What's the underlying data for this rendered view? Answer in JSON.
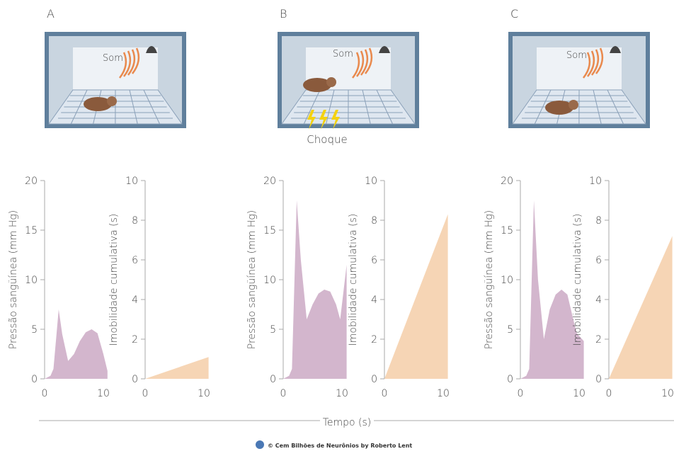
{
  "panels": [
    {
      "letter": "A",
      "sound_label": "Som"
    },
    {
      "letter": "B",
      "sound_label": "Som"
    },
    {
      "letter": "C",
      "sound_label": "Som"
    }
  ],
  "shock_label": "Choque",
  "shared_x_label": "Tempo (s)",
  "credit": "© Cem Bilhões de Neurônios by Roberto Lent",
  "chart_data": [
    {
      "type": "area",
      "y_label": "Pressão sangüínea (mm Hg)",
      "color": "#d3b6cd",
      "x": [
        0,
        1,
        1.5,
        2.4,
        3,
        4,
        5,
        6,
        7,
        8,
        9,
        10,
        10.7
      ],
      "values": [
        0,
        0.3,
        1,
        7,
        4.5,
        1.8,
        2.5,
        3.8,
        4.7,
        5,
        4.6,
        2.5,
        0.8
      ],
      "xlim": [
        0,
        11
      ],
      "xticks": [
        0,
        10
      ],
      "ylim": [
        0,
        20
      ],
      "yticks": [
        0,
        5,
        10,
        15,
        20
      ]
    },
    {
      "type": "area",
      "y_label": "Imobilidade cumulativa (s)",
      "color": "#f6d5b5",
      "x": [
        0,
        10.8
      ],
      "values": [
        0,
        1.1
      ],
      "xlim": [
        0,
        11
      ],
      "xticks": [
        0,
        10
      ],
      "ylim": [
        0,
        10
      ],
      "yticks": [
        0,
        2,
        4,
        6,
        8,
        10
      ]
    },
    {
      "type": "area",
      "y_label": "Pressão sangüínea (mm Hg)",
      "color": "#d3b6cd",
      "x": [
        0,
        1,
        1.5,
        2.3,
        3,
        4,
        5,
        6,
        7,
        8,
        9,
        9.7,
        10.8
      ],
      "values": [
        0,
        0.3,
        1,
        18,
        12,
        6,
        7.5,
        8.6,
        9,
        8.8,
        7.5,
        6,
        11.5
      ],
      "xlim": [
        0,
        11
      ],
      "xticks": [
        0,
        10
      ],
      "ylim": [
        0,
        20
      ],
      "yticks": [
        0,
        5,
        10,
        15,
        20
      ]
    },
    {
      "type": "area",
      "y_label": "Imobilidade cumulativa (s)",
      "color": "#f6d5b5",
      "x": [
        0,
        10.8
      ],
      "values": [
        0,
        8.3
      ],
      "xlim": [
        0,
        11
      ],
      "xticks": [
        0,
        10
      ],
      "ylim": [
        0,
        10
      ],
      "yticks": [
        0,
        2,
        4,
        6,
        8,
        10
      ]
    },
    {
      "type": "area",
      "y_label": "Pressão sangüínea (mm Hg)",
      "color": "#d3b6cd",
      "x": [
        0,
        1,
        1.5,
        2.3,
        3,
        4,
        5,
        6,
        7,
        8,
        9,
        9.6,
        10.8
      ],
      "values": [
        0,
        0.3,
        1,
        18,
        10,
        4,
        7,
        8.5,
        9,
        8.5,
        6,
        4.6,
        3.8
      ],
      "xlim": [
        0,
        11
      ],
      "xticks": [
        0,
        10
      ],
      "ylim": [
        0,
        20
      ],
      "yticks": [
        0,
        5,
        10,
        15,
        20
      ]
    },
    {
      "type": "area",
      "y_label": "Imobilidade cumulativa (s)",
      "color": "#f6d5b5",
      "x": [
        0,
        10.8
      ],
      "values": [
        0,
        7.2
      ],
      "xlim": [
        0,
        11
      ],
      "xticks": [
        0,
        10
      ],
      "ylim": [
        0,
        10
      ],
      "yticks": [
        0,
        2,
        4,
        6,
        8,
        10
      ]
    }
  ]
}
